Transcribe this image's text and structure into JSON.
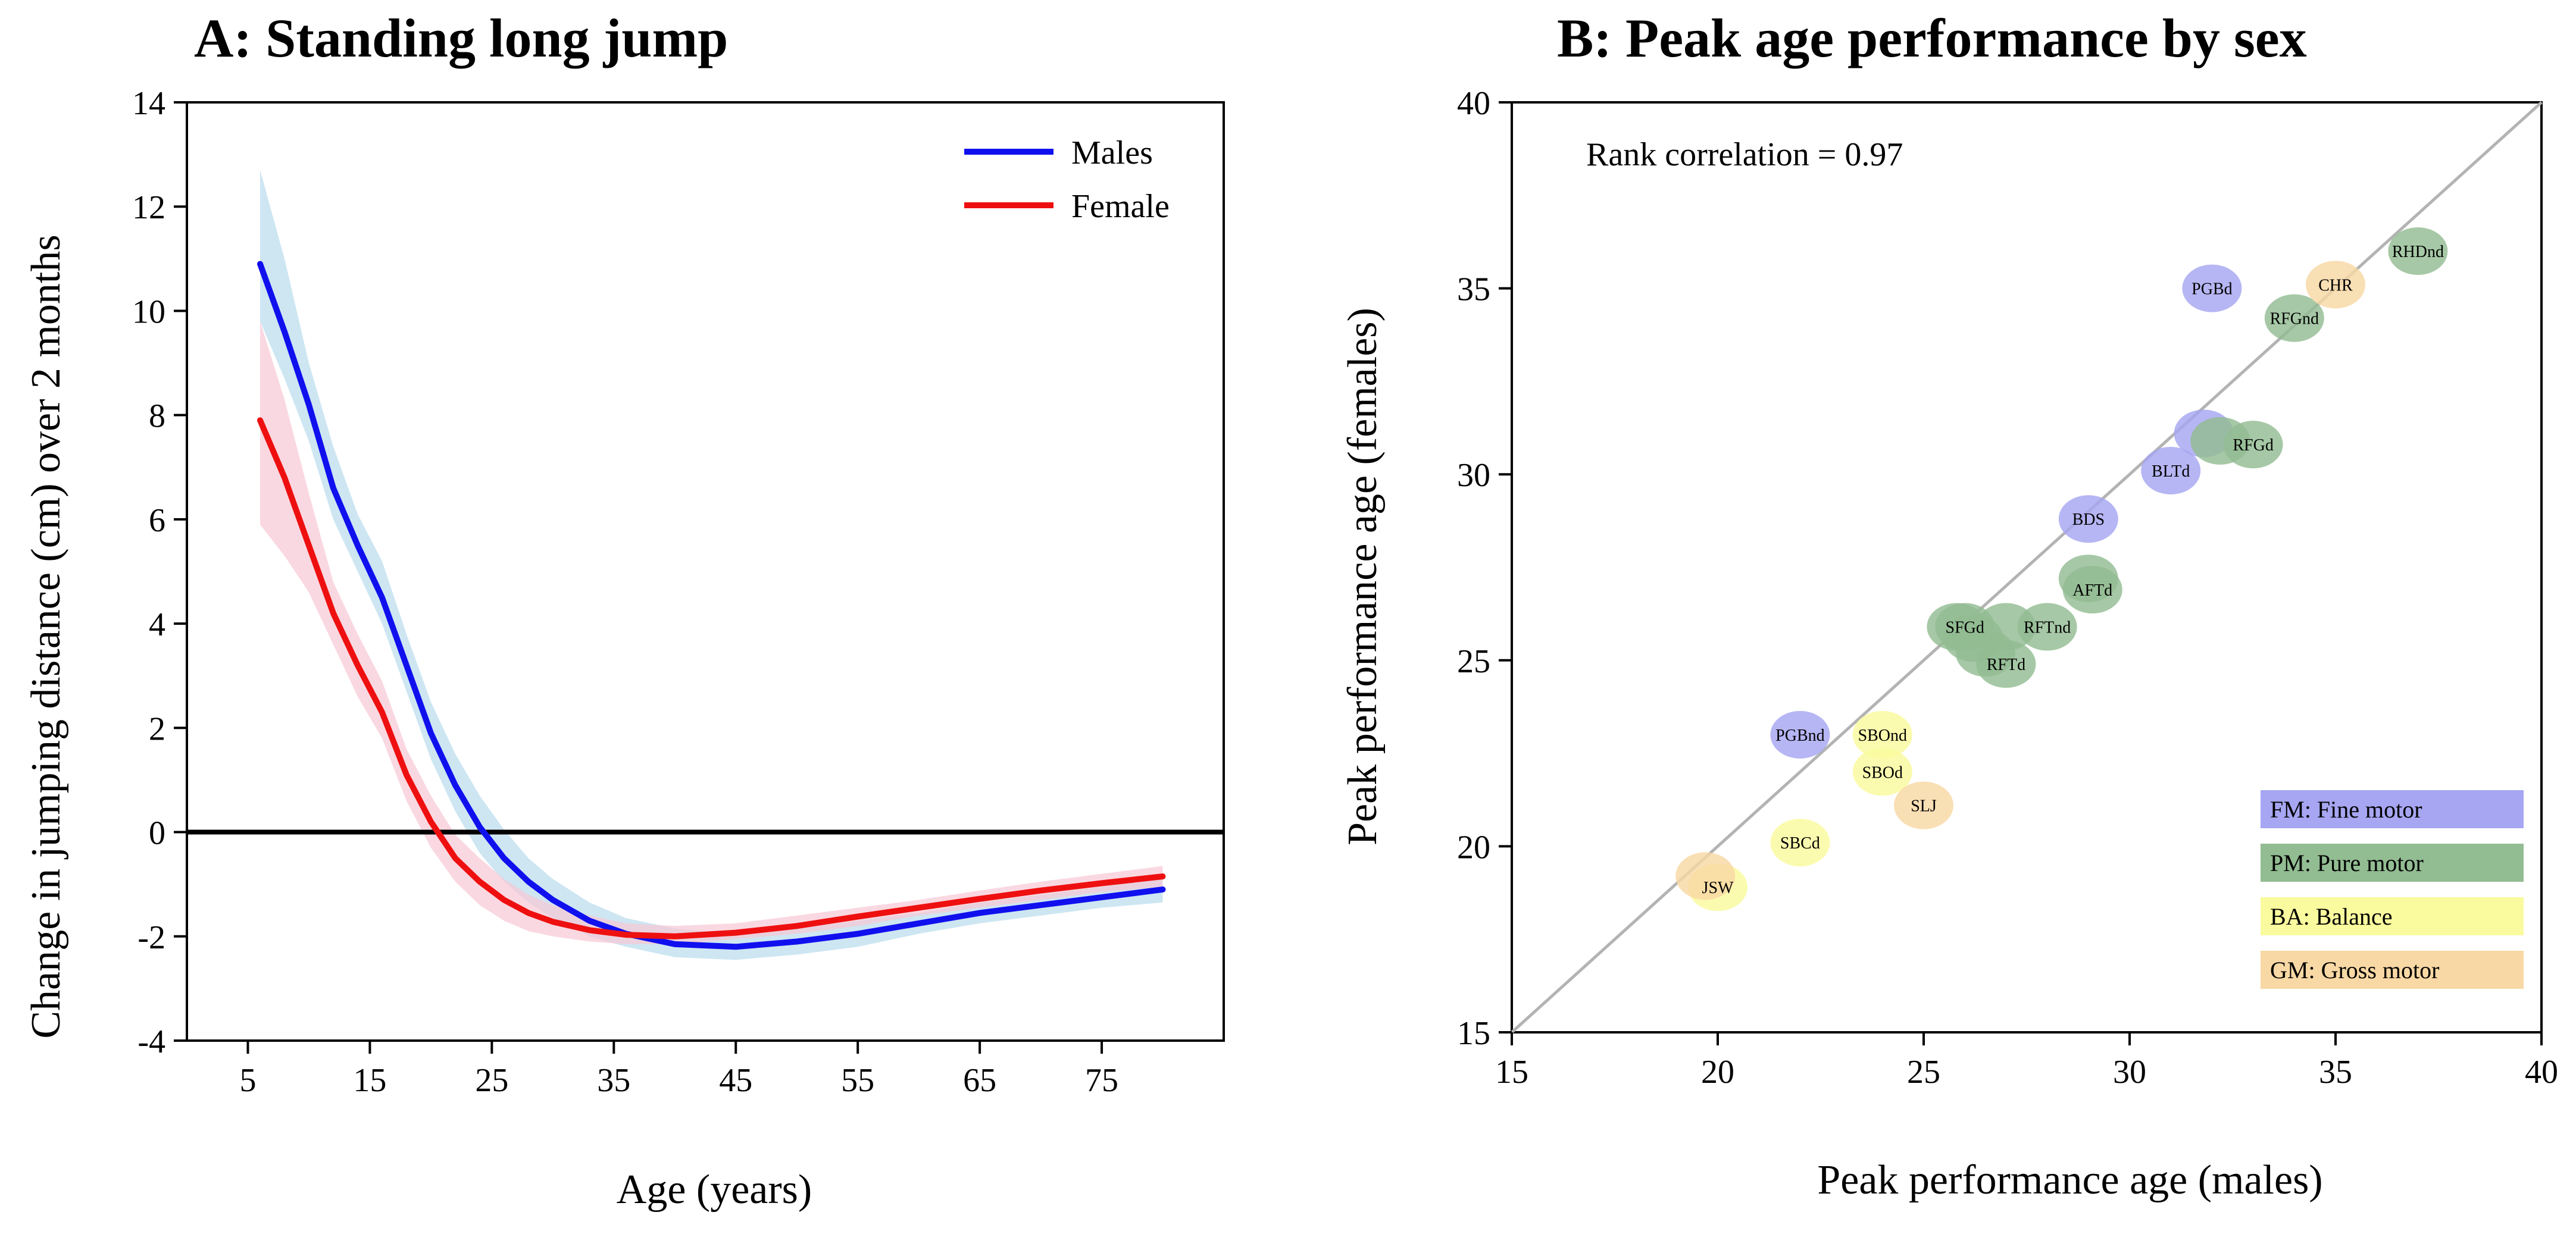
{
  "chart_data": [
    {
      "type": "line",
      "title": "A: Standing long jump",
      "xlabel": "Age (years)",
      "ylabel": "Change in jumping distance (cm) over 2 months",
      "xlim": [
        0,
        85
      ],
      "ylim": [
        -4,
        14
      ],
      "xticks": [
        5,
        15,
        25,
        35,
        45,
        55,
        65,
        75
      ],
      "xtick_labels": [
        "5",
        "15",
        "25",
        "35",
        "45",
        "55",
        "65",
        "75"
      ],
      "yticks": [
        -4,
        -2,
        0,
        2,
        4,
        6,
        8,
        10,
        12,
        14
      ],
      "ytick_labels": [
        "-4",
        "-2",
        "0",
        "2",
        "4",
        "6",
        "8",
        "10",
        "12",
        "14"
      ],
      "reference_line": 0,
      "legend": [
        "Males",
        "Female"
      ],
      "series": [
        {
          "name": "Males",
          "color": "#1010ee",
          "band_color": "#b8dcec",
          "x": [
            6,
            8,
            10,
            12,
            14,
            16,
            18,
            20,
            22,
            24,
            26,
            28,
            30,
            33,
            36,
            40,
            45,
            50,
            55,
            60,
            65,
            70,
            75,
            80
          ],
          "y": [
            10.9,
            9.6,
            8.2,
            6.6,
            5.5,
            4.5,
            3.2,
            1.9,
            0.9,
            0.1,
            -0.5,
            -0.95,
            -1.3,
            -1.7,
            -1.95,
            -2.15,
            -2.2,
            -2.1,
            -1.95,
            -1.75,
            -1.55,
            -1.4,
            -1.25,
            -1.1
          ],
          "lower": [
            9.8,
            8.7,
            7.5,
            6.0,
            5.0,
            4.0,
            2.7,
            1.4,
            0.4,
            -0.4,
            -0.95,
            -1.35,
            -1.65,
            -2.0,
            -2.2,
            -2.4,
            -2.45,
            -2.35,
            -2.2,
            -1.95,
            -1.75,
            -1.6,
            -1.45,
            -1.35
          ],
          "upper": [
            12.7,
            11.0,
            9.0,
            7.4,
            6.1,
            5.2,
            3.8,
            2.5,
            1.5,
            0.7,
            0.05,
            -0.5,
            -0.9,
            -1.35,
            -1.65,
            -1.85,
            -1.95,
            -1.85,
            -1.7,
            -1.55,
            -1.35,
            -1.2,
            -1.05,
            -0.85
          ]
        },
        {
          "name": "Female",
          "color": "#ee1010",
          "band_color": "#f8c8d4",
          "x": [
            6,
            8,
            10,
            12,
            14,
            16,
            18,
            20,
            22,
            24,
            26,
            28,
            30,
            33,
            36,
            40,
            45,
            50,
            55,
            60,
            65,
            70,
            75,
            80
          ],
          "y": [
            7.9,
            6.8,
            5.5,
            4.2,
            3.2,
            2.3,
            1.1,
            0.2,
            -0.5,
            -0.95,
            -1.3,
            -1.55,
            -1.72,
            -1.88,
            -1.97,
            -2.0,
            -1.93,
            -1.8,
            -1.62,
            -1.45,
            -1.28,
            -1.12,
            -0.98,
            -0.85
          ],
          "lower": [
            5.9,
            5.3,
            4.6,
            3.6,
            2.6,
            1.8,
            0.6,
            -0.3,
            -0.95,
            -1.4,
            -1.7,
            -1.9,
            -2.0,
            -2.1,
            -2.15,
            -2.15,
            -2.05,
            -1.95,
            -1.8,
            -1.6,
            -1.45,
            -1.3,
            -1.15,
            -1.05
          ],
          "upper": [
            9.8,
            8.3,
            6.5,
            4.8,
            3.8,
            2.9,
            1.6,
            0.7,
            -0.05,
            -0.5,
            -0.9,
            -1.2,
            -1.4,
            -1.6,
            -1.75,
            -1.8,
            -1.75,
            -1.6,
            -1.45,
            -1.3,
            -1.12,
            -0.95,
            -0.8,
            -0.65
          ]
        }
      ]
    },
    {
      "type": "scatter",
      "title": "B: Peak age performance by sex",
      "xlabel": "Peak performance age (males)",
      "ylabel": "Peak performance age (females)",
      "xlim": [
        15,
        40
      ],
      "ylim": [
        15,
        40
      ],
      "xticks": [
        15,
        20,
        25,
        30,
        35,
        40
      ],
      "xtick_labels": [
        "15",
        "20",
        "25",
        "30",
        "35",
        "40"
      ],
      "yticks": [
        15,
        20,
        25,
        30,
        35,
        40
      ],
      "ytick_labels": [
        "15",
        "20",
        "25",
        "30",
        "35",
        "40"
      ],
      "identity_line": true,
      "annotation": "Rank correlation = 0.97",
      "groups": [
        {
          "label": "FM: Fine motor",
          "color": "#a6a6f2"
        },
        {
          "label": "PM: Pure motor",
          "color": "#92bc92"
        },
        {
          "label": "BA: Balance",
          "color": "#fafa9e"
        },
        {
          "label": "GM: Gross motor",
          "color": "#f8d8a4"
        }
      ],
      "points": [
        {
          "label": "PGBd",
          "x": 32,
          "y": 35,
          "group": 0
        },
        {
          "label": "",
          "x": 31.8,
          "y": 31.1,
          "group": 0
        },
        {
          "label": "BLTd",
          "x": 31,
          "y": 30.1,
          "group": 0
        },
        {
          "label": "BDS",
          "x": 29,
          "y": 28.8,
          "group": 0
        },
        {
          "label": "PGBnd",
          "x": 22,
          "y": 23,
          "group": 0
        },
        {
          "label": "RHDnd",
          "x": 37,
          "y": 36,
          "group": 1
        },
        {
          "label": "RFGnd",
          "x": 34,
          "y": 34.2,
          "group": 1
        },
        {
          "label": "",
          "x": 32.2,
          "y": 30.9,
          "group": 1
        },
        {
          "label": "RFGd",
          "x": 33,
          "y": 30.8,
          "group": 1
        },
        {
          "label": "",
          "x": 29,
          "y": 27.2,
          "group": 1
        },
        {
          "label": "AFTd",
          "x": 29.1,
          "y": 26.9,
          "group": 1
        },
        {
          "label": "",
          "x": 27,
          "y": 25.9,
          "group": 1
        },
        {
          "label": "",
          "x": 25.8,
          "y": 25.9,
          "group": 1
        },
        {
          "label": "SFGd",
          "x": 26,
          "y": 25.9,
          "group": 1
        },
        {
          "label": "",
          "x": 26.2,
          "y": 25.6,
          "group": 1
        },
        {
          "label": "RFTnd",
          "x": 28,
          "y": 25.9,
          "group": 1
        },
        {
          "label": "",
          "x": 26.5,
          "y": 25.2,
          "group": 1
        },
        {
          "label": "RFTd",
          "x": 27,
          "y": 24.9,
          "group": 1
        },
        {
          "label": "SBOnd",
          "x": 24,
          "y": 23,
          "group": 2
        },
        {
          "label": "SBOd",
          "x": 24,
          "y": 22,
          "group": 2
        },
        {
          "label": "SBCd",
          "x": 22,
          "y": 20.1,
          "group": 2
        },
        {
          "label": "JSW",
          "x": 20,
          "y": 18.9,
          "group": 2
        },
        {
          "label": "CHR",
          "x": 35,
          "y": 35.1,
          "group": 3
        },
        {
          "label": "SLJ",
          "x": 25,
          "y": 21.1,
          "group": 3
        },
        {
          "label": "",
          "x": 19.7,
          "y": 19.2,
          "group": 3
        }
      ]
    }
  ]
}
